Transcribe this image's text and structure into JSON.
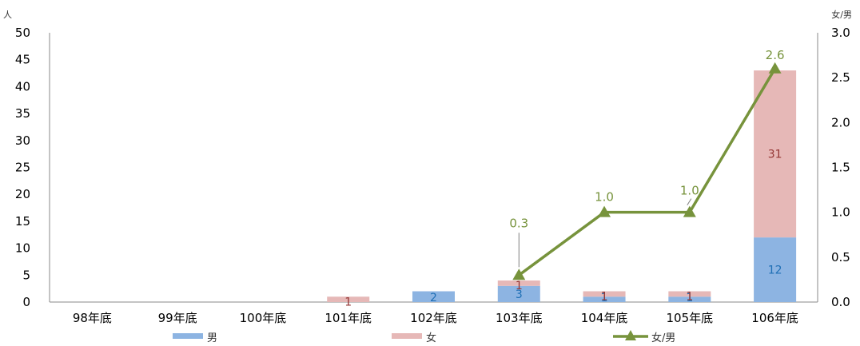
{
  "chart_data": {
    "type": "bar",
    "stacked": true,
    "categories": [
      "98年底",
      "99年底",
      "100年底",
      "101年底",
      "102年底",
      "103年底",
      "104年底",
      "105年底",
      "106年底"
    ],
    "series": [
      {
        "name": "男",
        "kind": "bar",
        "axis": "left",
        "color": "#8db4e2",
        "label_color": "#1f6fb5",
        "values": [
          0,
          0,
          0,
          0,
          2,
          3,
          1,
          1,
          12
        ]
      },
      {
        "name": "女",
        "kind": "bar",
        "axis": "left",
        "color": "#e6b8b7",
        "label_color": "#953735",
        "values": [
          0,
          0,
          0,
          1,
          0,
          1,
          1,
          1,
          31
        ]
      },
      {
        "name": "女/男",
        "kind": "line",
        "axis": "right",
        "color": "#77933c",
        "values": [
          null,
          null,
          null,
          null,
          null,
          0.3,
          1.0,
          1.0,
          2.6
        ]
      }
    ],
    "y_left": {
      "unit": "人",
      "ylim": [
        0,
        50
      ],
      "ticks": [
        "0",
        "5",
        "10",
        "15",
        "20",
        "25",
        "30",
        "35",
        "40",
        "45",
        "50"
      ]
    },
    "y_right": {
      "unit": "女/男",
      "ylim": [
        0,
        3.0
      ],
      "ticks": [
        "0.0",
        "0.5",
        "1.0",
        "1.5",
        "2.0",
        "2.5",
        "3.0"
      ]
    },
    "line_labels": [
      "0.3",
      "1.0",
      "1.0",
      "2.6"
    ],
    "grid": false,
    "legend_position": "bottom"
  }
}
